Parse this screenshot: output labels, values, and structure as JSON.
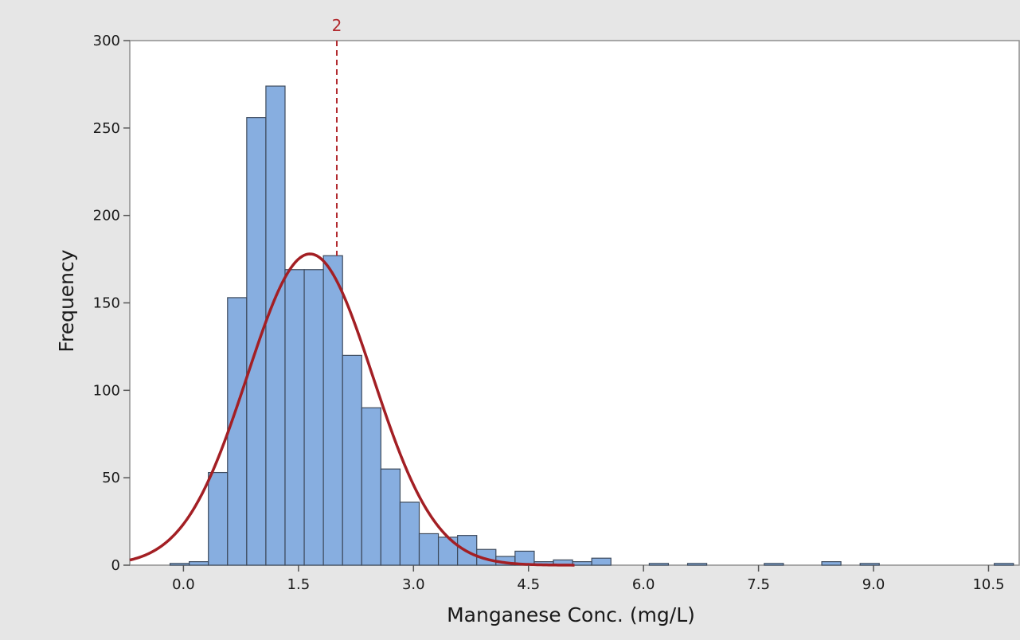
{
  "chart_data": {
    "type": "bar",
    "subtype": "histogram",
    "xlabel": "Manganese Conc. (mg/L)",
    "ylabel": "Frequency",
    "xlim": [
      -0.7,
      10.9
    ],
    "ylim": [
      0,
      300
    ],
    "x_ticks": [
      "0.0",
      "1.5",
      "3.0",
      "4.5",
      "6.0",
      "7.5",
      "9.0",
      "10.5"
    ],
    "y_ticks": [
      "0",
      "50",
      "100",
      "150",
      "200",
      "250",
      "300"
    ],
    "grid": false,
    "bin_width": 0.25,
    "bins": [
      {
        "center": -0.05,
        "count": 1
      },
      {
        "center": 0.2,
        "count": 2
      },
      {
        "center": 0.45,
        "count": 53
      },
      {
        "center": 0.7,
        "count": 153
      },
      {
        "center": 0.95,
        "count": 256
      },
      {
        "center": 1.2,
        "count": 274
      },
      {
        "center": 1.45,
        "count": 169
      },
      {
        "center": 1.7,
        "count": 169
      },
      {
        "center": 1.95,
        "count": 177
      },
      {
        "center": 2.2,
        "count": 120
      },
      {
        "center": 2.45,
        "count": 90
      },
      {
        "center": 2.7,
        "count": 55
      },
      {
        "center": 2.95,
        "count": 36
      },
      {
        "center": 3.2,
        "count": 18
      },
      {
        "center": 3.45,
        "count": 16
      },
      {
        "center": 3.7,
        "count": 17
      },
      {
        "center": 3.95,
        "count": 9
      },
      {
        "center": 4.2,
        "count": 5
      },
      {
        "center": 4.45,
        "count": 8
      },
      {
        "center": 4.7,
        "count": 2
      },
      {
        "center": 4.95,
        "count": 3
      },
      {
        "center": 5.2,
        "count": 2
      },
      {
        "center": 5.45,
        "count": 4
      },
      {
        "center": 6.2,
        "count": 1
      },
      {
        "center": 6.7,
        "count": 1
      },
      {
        "center": 7.7,
        "count": 1
      },
      {
        "center": 8.45,
        "count": 2
      },
      {
        "center": 8.95,
        "count": 1
      },
      {
        "center": 10.7,
        "count": 1
      }
    ],
    "fit_curve": {
      "type": "normal",
      "mean": 1.65,
      "sd": 0.82,
      "peak": 178,
      "x_range": [
        -0.7,
        5.1
      ]
    },
    "reference_line": {
      "x": 2,
      "label": "2"
    },
    "colors": {
      "bar_fill": "#87aee0",
      "bar_stroke": "#3d4a5c",
      "curve": "#a31f24",
      "reference": "#b22a2e",
      "plot_bg": "#ffffff",
      "outer_bg": "#e6e6e6"
    }
  }
}
